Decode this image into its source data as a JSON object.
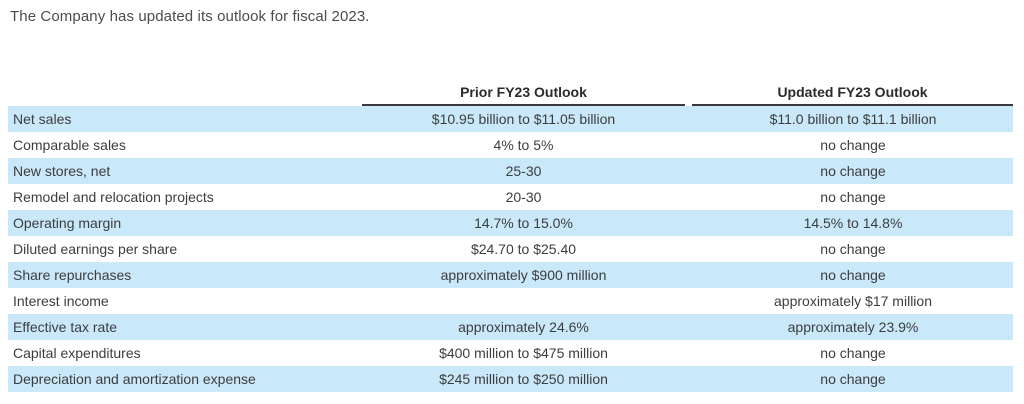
{
  "intro": "The Company has updated its outlook for fiscal 2023.",
  "table": {
    "columns": [
      "",
      "Prior FY23 Outlook",
      "Updated FY23 Outlook"
    ],
    "rows": [
      {
        "label": "Net sales",
        "prior": "$10.95 billion to $11.05 billion",
        "updated": "$11.0 billion to $11.1 billion"
      },
      {
        "label": "Comparable sales",
        "prior": "4% to 5%",
        "updated": "no change"
      },
      {
        "label": "New stores, net",
        "prior": "25-30",
        "updated": "no change"
      },
      {
        "label": "Remodel and relocation projects",
        "prior": "20-30",
        "updated": "no change"
      },
      {
        "label": "Operating margin",
        "prior": "14.7% to 15.0%",
        "updated": "14.5% to 14.8%"
      },
      {
        "label": "Diluted earnings per share",
        "prior": "$24.70 to $25.40",
        "updated": "no change"
      },
      {
        "label": "Share repurchases",
        "prior": "approximately $900 million",
        "updated": "no change"
      },
      {
        "label": "Interest income",
        "prior": "",
        "updated": "approximately $17 million"
      },
      {
        "label": "Effective tax rate",
        "prior": "approximately 24.6%",
        "updated": "approximately 23.9%"
      },
      {
        "label": "Capital expenditures",
        "prior": "$400 million to $475 million",
        "updated": "no change"
      },
      {
        "label": "Depreciation and amortization expense",
        "prior": "$245 million to $250 million",
        "updated": "no change"
      }
    ],
    "colors": {
      "row_highlight": "#c9e8fa",
      "body_text": "#3d3d3d",
      "header_text": "#2b2b2b",
      "header_underline": "#3a3a3a"
    }
  }
}
